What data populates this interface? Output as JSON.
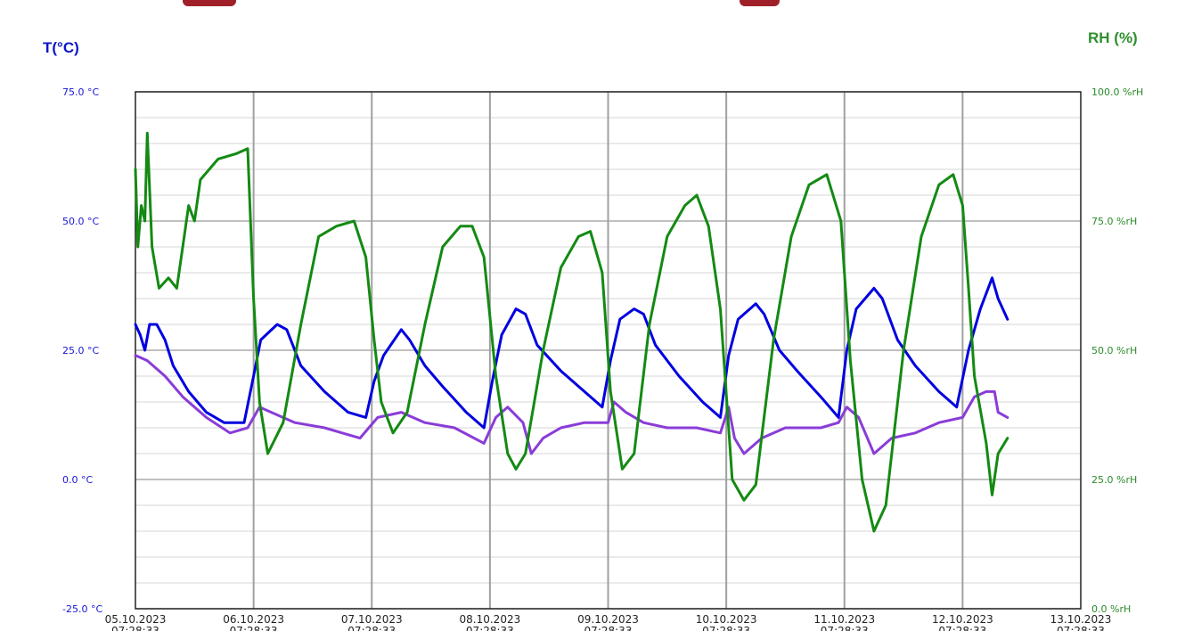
{
  "axis_titles": {
    "left": "T(°C)",
    "right": "RH (%)"
  },
  "colors": {
    "temperature_blue": "#0000e0",
    "temperature_purple": "#8a3cd8",
    "humidity_green": "#138a13",
    "left_axis_text": "#1616d6",
    "right_axis_text": "#2a8a2a",
    "banner": "#a0202a"
  },
  "chart_data": {
    "type": "line",
    "title": "",
    "xlabel": "",
    "ylabel_left": "T(°C)",
    "ylabel_right": "RH (%)",
    "ylim_left": [
      -25,
      75
    ],
    "ylim_right": [
      0,
      100
    ],
    "xlim": [
      "05.10.2023 07:28:33",
      "13.10.2023 07:28:33"
    ],
    "grid": true,
    "left_ticks": [
      "75.0 °C",
      "50.0 °C",
      "25.0 °C",
      "0.0 °C",
      "-25.0 °C"
    ],
    "right_ticks": [
      "100.0 %rH",
      "75.0 %rH",
      "50.0 %rH",
      "25.0 %rH",
      "0.0 %rH"
    ],
    "x_ticks": [
      {
        "date": "05.10.2023",
        "time": "07:28:33"
      },
      {
        "date": "06.10.2023",
        "time": "07:28:33"
      },
      {
        "date": "07.10.2023",
        "time": "07:28:33"
      },
      {
        "date": "08.10.2023",
        "time": "07:28:33"
      },
      {
        "date": "09.10.2023",
        "time": "07:28:33"
      },
      {
        "date": "10.10.2023",
        "time": "07:28:33"
      },
      {
        "date": "11.10.2023",
        "time": "07:28:33"
      },
      {
        "date": "12.10.2023",
        "time": "07:28:33"
      },
      {
        "date": "13.10.2023",
        "time": "07:28:33"
      }
    ],
    "x_unit": "days since 05.10.2023 07:28:33",
    "series": [
      {
        "axis": "left",
        "color": "#0000e0",
        "points": [
          [
            0,
            30
          ],
          [
            0.04,
            28
          ],
          [
            0.08,
            25
          ],
          [
            0.12,
            30
          ],
          [
            0.18,
            30
          ],
          [
            0.25,
            27
          ],
          [
            0.32,
            22
          ],
          [
            0.45,
            17
          ],
          [
            0.6,
            13
          ],
          [
            0.75,
            11
          ],
          [
            0.92,
            11
          ],
          [
            1.0,
            20
          ],
          [
            1.06,
            27
          ],
          [
            1.2,
            30
          ],
          [
            1.28,
            29
          ],
          [
            1.4,
            22
          ],
          [
            1.6,
            17
          ],
          [
            1.8,
            13
          ],
          [
            1.95,
            12
          ],
          [
            2.02,
            19
          ],
          [
            2.1,
            24
          ],
          [
            2.25,
            29
          ],
          [
            2.32,
            27
          ],
          [
            2.45,
            22
          ],
          [
            2.6,
            18
          ],
          [
            2.8,
            13
          ],
          [
            2.95,
            10
          ],
          [
            3.02,
            19
          ],
          [
            3.1,
            28
          ],
          [
            3.22,
            33
          ],
          [
            3.3,
            32
          ],
          [
            3.4,
            26
          ],
          [
            3.6,
            21
          ],
          [
            3.8,
            17
          ],
          [
            3.95,
            14
          ],
          [
            4.02,
            23
          ],
          [
            4.1,
            31
          ],
          [
            4.22,
            33
          ],
          [
            4.3,
            32
          ],
          [
            4.4,
            26
          ],
          [
            4.6,
            20
          ],
          [
            4.8,
            15
          ],
          [
            4.95,
            12
          ],
          [
            5.02,
            24
          ],
          [
            5.1,
            31
          ],
          [
            5.25,
            34
          ],
          [
            5.32,
            32
          ],
          [
            5.45,
            25
          ],
          [
            5.6,
            21
          ],
          [
            5.8,
            16
          ],
          [
            5.95,
            12
          ],
          [
            6.02,
            25
          ],
          [
            6.1,
            33
          ],
          [
            6.25,
            37
          ],
          [
            6.32,
            35
          ],
          [
            6.45,
            27
          ],
          [
            6.6,
            22
          ],
          [
            6.8,
            17
          ],
          [
            6.95,
            14
          ],
          [
            7.05,
            25
          ],
          [
            7.15,
            33
          ],
          [
            7.25,
            39
          ],
          [
            7.3,
            35
          ],
          [
            7.38,
            31
          ]
        ]
      },
      {
        "axis": "left",
        "color": "#8a3cd8",
        "points": [
          [
            0,
            24
          ],
          [
            0.1,
            23
          ],
          [
            0.25,
            20
          ],
          [
            0.4,
            16
          ],
          [
            0.6,
            12
          ],
          [
            0.8,
            9
          ],
          [
            0.95,
            10
          ],
          [
            1.05,
            14
          ],
          [
            1.15,
            13
          ],
          [
            1.35,
            11
          ],
          [
            1.6,
            10
          ],
          [
            1.9,
            8
          ],
          [
            2.05,
            12
          ],
          [
            2.25,
            13
          ],
          [
            2.45,
            11
          ],
          [
            2.7,
            10
          ],
          [
            2.95,
            7
          ],
          [
            3.05,
            12
          ],
          [
            3.15,
            14
          ],
          [
            3.28,
            11
          ],
          [
            3.35,
            5
          ],
          [
            3.45,
            8
          ],
          [
            3.6,
            10
          ],
          [
            3.8,
            11
          ],
          [
            4.0,
            11
          ],
          [
            4.05,
            15
          ],
          [
            4.15,
            13
          ],
          [
            4.3,
            11
          ],
          [
            4.5,
            10
          ],
          [
            4.75,
            10
          ],
          [
            4.95,
            9
          ],
          [
            5.02,
            14
          ],
          [
            5.07,
            8
          ],
          [
            5.15,
            5
          ],
          [
            5.3,
            8
          ],
          [
            5.5,
            10
          ],
          [
            5.8,
            10
          ],
          [
            5.95,
            11
          ],
          [
            6.02,
            14
          ],
          [
            6.12,
            12
          ],
          [
            6.25,
            5
          ],
          [
            6.4,
            8
          ],
          [
            6.6,
            9
          ],
          [
            6.8,
            11
          ],
          [
            7.0,
            12
          ],
          [
            7.1,
            16
          ],
          [
            7.2,
            17
          ],
          [
            7.27,
            17
          ],
          [
            7.3,
            13
          ],
          [
            7.38,
            12
          ]
        ]
      },
      {
        "axis": "right",
        "color": "#138a13",
        "points": [
          [
            0,
            85
          ],
          [
            0.02,
            70
          ],
          [
            0.05,
            78
          ],
          [
            0.08,
            75
          ],
          [
            0.1,
            92
          ],
          [
            0.14,
            70
          ],
          [
            0.2,
            62
          ],
          [
            0.28,
            64
          ],
          [
            0.35,
            62
          ],
          [
            0.4,
            70
          ],
          [
            0.45,
            78
          ],
          [
            0.5,
            75
          ],
          [
            0.55,
            83
          ],
          [
            0.7,
            87
          ],
          [
            0.85,
            88
          ],
          [
            0.95,
            89
          ],
          [
            1.0,
            60
          ],
          [
            1.05,
            40
          ],
          [
            1.12,
            30
          ],
          [
            1.25,
            36
          ],
          [
            1.4,
            55
          ],
          [
            1.55,
            72
          ],
          [
            1.7,
            74
          ],
          [
            1.85,
            75
          ],
          [
            1.95,
            68
          ],
          [
            2.02,
            52
          ],
          [
            2.08,
            40
          ],
          [
            2.18,
            34
          ],
          [
            2.3,
            38
          ],
          [
            2.45,
            55
          ],
          [
            2.6,
            70
          ],
          [
            2.75,
            74
          ],
          [
            2.85,
            74
          ],
          [
            2.95,
            68
          ],
          [
            3.05,
            45
          ],
          [
            3.15,
            30
          ],
          [
            3.22,
            27
          ],
          [
            3.3,
            30
          ],
          [
            3.45,
            50
          ],
          [
            3.6,
            66
          ],
          [
            3.75,
            72
          ],
          [
            3.85,
            73
          ],
          [
            3.95,
            65
          ],
          [
            4.02,
            42
          ],
          [
            4.12,
            27
          ],
          [
            4.22,
            30
          ],
          [
            4.35,
            55
          ],
          [
            4.5,
            72
          ],
          [
            4.65,
            78
          ],
          [
            4.75,
            80
          ],
          [
            4.85,
            74
          ],
          [
            4.95,
            58
          ],
          [
            5.05,
            25
          ],
          [
            5.15,
            21
          ],
          [
            5.25,
            24
          ],
          [
            5.4,
            52
          ],
          [
            5.55,
            72
          ],
          [
            5.7,
            82
          ],
          [
            5.85,
            84
          ],
          [
            5.97,
            75
          ],
          [
            6.05,
            48
          ],
          [
            6.15,
            25
          ],
          [
            6.25,
            15
          ],
          [
            6.35,
            20
          ],
          [
            6.5,
            50
          ],
          [
            6.65,
            72
          ],
          [
            6.8,
            82
          ],
          [
            6.92,
            84
          ],
          [
            7.0,
            78
          ],
          [
            7.05,
            62
          ],
          [
            7.1,
            45
          ],
          [
            7.2,
            32
          ],
          [
            7.25,
            22
          ],
          [
            7.3,
            30
          ],
          [
            7.38,
            33
          ]
        ]
      }
    ]
  }
}
